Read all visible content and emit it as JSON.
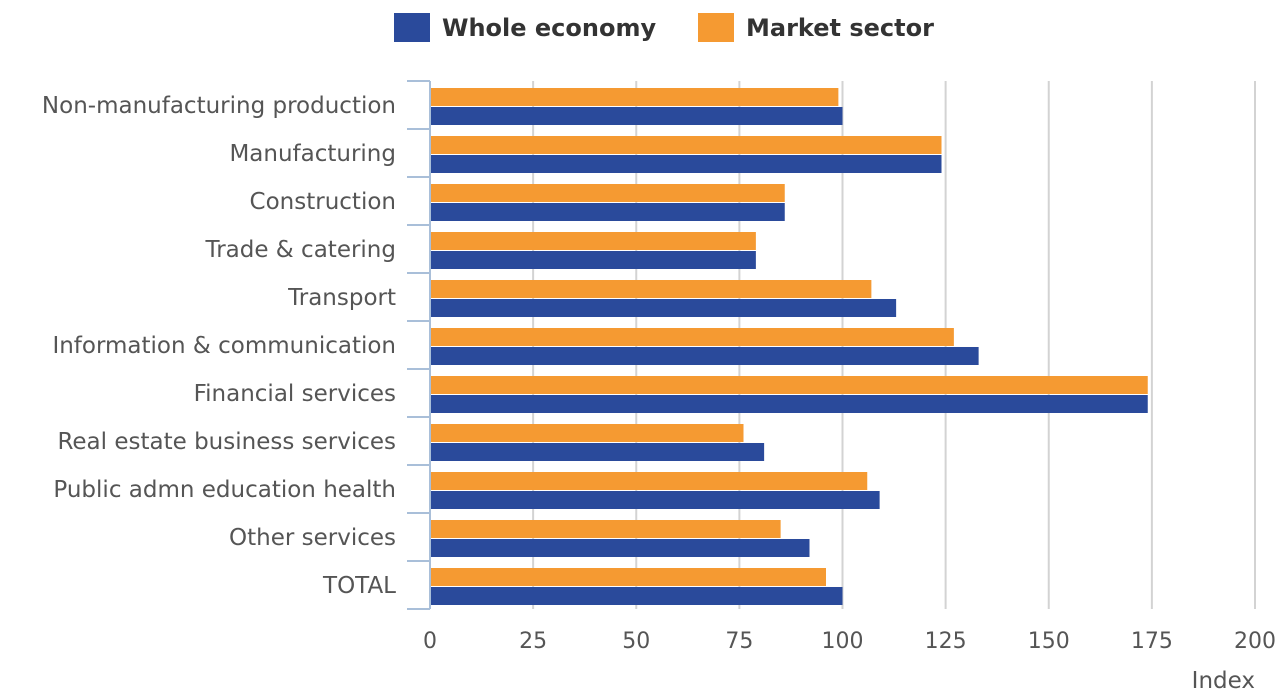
{
  "chart_data": {
    "type": "bar",
    "orientation": "horizontal",
    "categories": [
      "Non-manufacturing production",
      "Manufacturing",
      "Construction",
      "Trade & catering",
      "Transport",
      "Information & communication",
      "Financial services",
      "Real estate business services",
      "Public admn education health",
      "Other services",
      "TOTAL"
    ],
    "series": [
      {
        "name": "Whole economy",
        "color": "#2a4a9b",
        "values": [
          100,
          124,
          86,
          79,
          113,
          133,
          174,
          81,
          109,
          92,
          100
        ]
      },
      {
        "name": "Market sector",
        "color": "#f59a32",
        "values": [
          99,
          124,
          86,
          79,
          107,
          127,
          174,
          76,
          106,
          85,
          96
        ]
      }
    ],
    "xlabel": "Index",
    "ylabel": "",
    "xlim": [
      0,
      200
    ],
    "xticks": [
      "0",
      "25",
      "50",
      "75",
      "100",
      "125",
      "150",
      "175",
      "200"
    ],
    "grid": true,
    "legend_position": "top"
  }
}
